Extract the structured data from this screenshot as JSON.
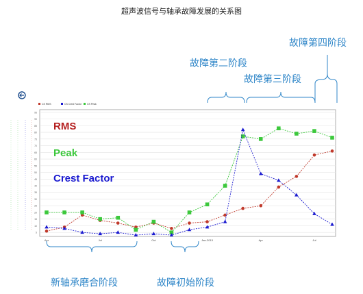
{
  "title": "超声波信号与轴承故障发展的关系图",
  "legend_overlay": {
    "rms": "RMS",
    "peak": "Peak",
    "crest": "Crest Factor"
  },
  "stages": {
    "new_wearin": "新轴承磨合阶段",
    "initial": "故障初始阶段",
    "second": "故障第二阶段",
    "third": "故障第三阶段",
    "fourth": "故障第四阶段"
  },
  "colors": {
    "rms": "#c0392b",
    "peak": "#3cc83c",
    "crest": "#1a1ad0",
    "brace": "#2f86c8",
    "stage_text": "#2f86c8"
  },
  "chart_data": {
    "type": "line",
    "title": "超声波信号与轴承故障发展的关系图",
    "x": [
      0,
      1,
      2,
      3,
      4,
      5,
      6,
      7,
      8,
      9,
      10,
      11,
      12,
      13,
      14,
      15,
      16
    ],
    "x_tick_labels": [
      "Apr",
      "Jul",
      "Oct",
      "Jan-2013",
      "Apr",
      "Jul"
    ],
    "x_tick_positions": [
      0,
      3,
      6,
      9,
      12,
      15
    ],
    "y_ticks": [
      5,
      10,
      15,
      20,
      25,
      30,
      35,
      40,
      45,
      50,
      55,
      60,
      65,
      70,
      75,
      80,
      85,
      90,
      95
    ],
    "ylim": [
      2,
      97
    ],
    "grid": true,
    "series": [
      {
        "name": "RMS",
        "key": "rms",
        "marker": "circle",
        "values": [
          6,
          9,
          18,
          14,
          12,
          9,
          12,
          8,
          12,
          13,
          18,
          23,
          25,
          39,
          47,
          63,
          66
        ]
      },
      {
        "name": "Peak",
        "key": "peak",
        "marker": "square",
        "values": [
          20,
          20,
          20,
          15,
          16,
          7,
          13,
          5,
          20,
          26,
          40,
          77,
          75,
          83,
          79,
          81,
          76
        ]
      },
      {
        "name": "Crest Factor",
        "key": "crest",
        "marker": "triangle",
        "values": [
          9,
          8,
          5,
          4,
          5,
          3,
          4,
          3,
          7,
          9,
          13,
          82,
          49,
          44,
          33,
          19,
          11
        ]
      }
    ],
    "top_legend": [
      "CS RMS",
      "CS Crest Factor",
      "CS Peak"
    ]
  }
}
